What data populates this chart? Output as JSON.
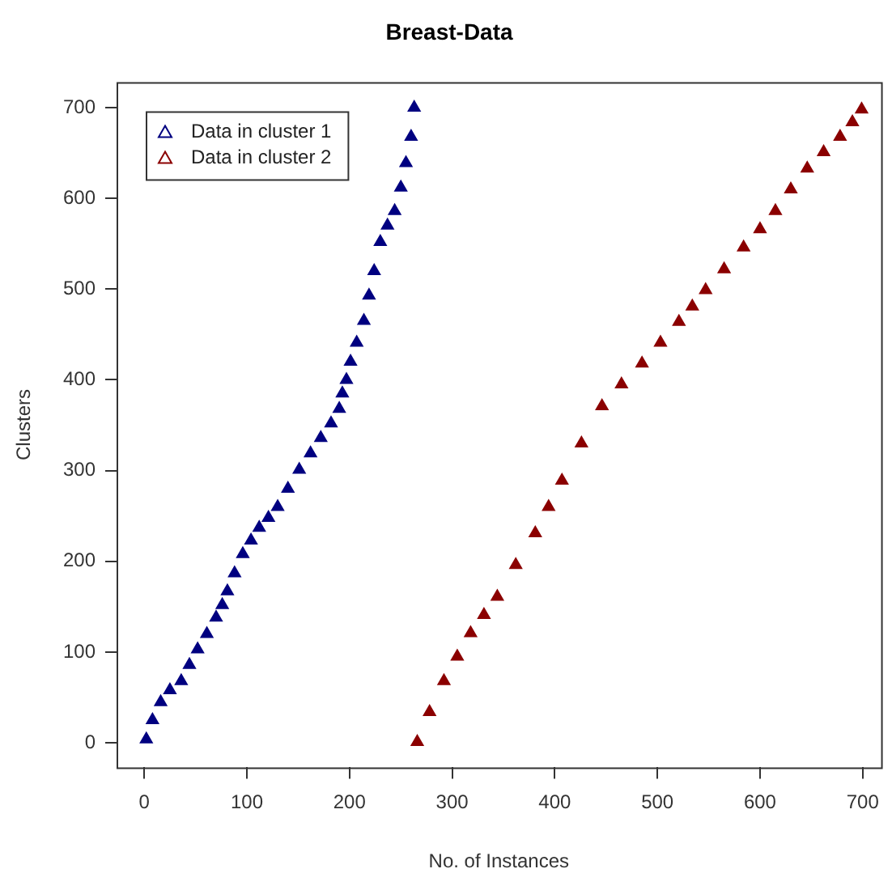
{
  "chart_data": {
    "type": "scatter",
    "title": "Breast-Data",
    "xlabel": "No. of Instances",
    "ylabel": "Clusters",
    "xlim": [
      -27,
      718
    ],
    "ylim": [
      -27,
      728
    ],
    "xticks": [
      0,
      100,
      200,
      300,
      400,
      500,
      600,
      700
    ],
    "yticks": [
      0,
      100,
      200,
      300,
      400,
      500,
      600,
      700
    ],
    "grid": false,
    "legend": "top left",
    "marker": "triangle",
    "series": [
      {
        "name": "Data in cluster 1",
        "color": "#000080",
        "x": [
          2,
          8,
          16,
          25,
          36,
          44,
          52,
          61,
          70,
          76,
          81,
          88,
          96,
          104,
          112,
          121,
          130,
          140,
          151,
          162,
          172,
          182,
          190,
          193,
          197,
          201,
          207,
          214,
          219,
          224,
          230,
          237,
          244,
          250,
          255,
          260,
          263
        ],
        "values": [
          4,
          25,
          45,
          58,
          68,
          86,
          103,
          120,
          138,
          152,
          167,
          187,
          208,
          223,
          237,
          248,
          260,
          280,
          301,
          319,
          336,
          352,
          368,
          385,
          400,
          420,
          441,
          465,
          493,
          520,
          552,
          570,
          586,
          612,
          639,
          668,
          700
        ]
      },
      {
        "name": "Data in cluster 2",
        "color": "#8b0000",
        "x": [
          266,
          278,
          292,
          305,
          318,
          331,
          344,
          362,
          381,
          394,
          407,
          426,
          446,
          465,
          485,
          503,
          521,
          534,
          547,
          565,
          584,
          600,
          615,
          630,
          646,
          662,
          678,
          690,
          699
        ],
        "values": [
          1,
          34,
          68,
          95,
          121,
          141,
          161,
          196,
          231,
          260,
          289,
          330,
          371,
          395,
          418,
          441,
          464,
          481,
          499,
          522,
          546,
          566,
          586,
          610,
          633,
          651,
          668,
          684,
          698
        ]
      }
    ]
  }
}
